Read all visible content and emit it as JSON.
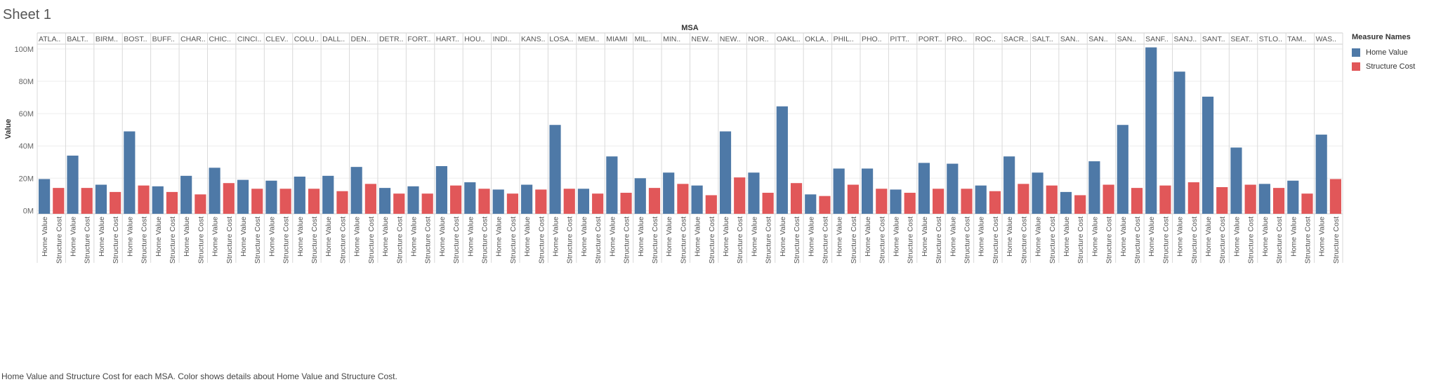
{
  "sheet": {
    "title": "Sheet 1",
    "caption": "Home Value and Structure Cost for each MSA.  Color shows details about Home Value and Structure Cost."
  },
  "legend": {
    "title": "Measure Names",
    "items": [
      {
        "label": "Home Value",
        "color": "#4e79a7"
      },
      {
        "label": "Structure Cost",
        "color": "#e15759"
      }
    ]
  },
  "chart_data": {
    "type": "bar",
    "title": "MSA",
    "xlabel": "",
    "ylabel": "Value",
    "ylim": [
      -2,
      103
    ],
    "yticks": [
      0,
      20,
      40,
      60,
      80,
      100
    ],
    "ytick_labels": [
      "0M",
      "20M",
      "40M",
      "60M",
      "80M",
      "100M"
    ],
    "y_unit": "millions",
    "grid": "horizontal",
    "legend_placement": "right",
    "measures": [
      "Home Value",
      "Structure Cost"
    ],
    "categories": [
      "ATLA..",
      "BALT..",
      "BIRM..",
      "BOST..",
      "BUFF..",
      "CHAR..",
      "CHIC..",
      "CINCI..",
      "CLEV..",
      "COLU..",
      "DALL..",
      "DEN..",
      "DETR..",
      "FORT..",
      "HART..",
      "HOU..",
      "INDI..",
      "KANS..",
      "LOSA..",
      "MEM..",
      "MIAMI",
      "MIL..",
      "MIN..",
      "NEW..",
      "NEW..",
      "NOR..",
      "OAKL..",
      "OKLA..",
      "PHIL..",
      "PHO..",
      "PITT..",
      "PORT..",
      "PRO..",
      "ROC..",
      "SACR..",
      "SALT..",
      "SAN..",
      "SAN..",
      "SAN..",
      "SANF..",
      "SANJ..",
      "SANT..",
      "SEAT..",
      "STLO..",
      "TAM..",
      "WAS.."
    ],
    "series": [
      {
        "name": "Home Value",
        "color": "#4e79a7",
        "values": [
          19.5,
          34,
          16,
          49,
          15,
          21.5,
          26.5,
          19,
          18.5,
          21,
          21.5,
          27,
          14,
          15,
          27.5,
          17.5,
          13,
          16,
          53,
          13.5,
          33.5,
          20,
          23.5,
          15.5,
          49,
          23.5,
          64.5,
          10,
          26,
          26,
          13,
          29.5,
          29,
          15.5,
          33.5,
          23.5,
          11.5,
          30.5,
          53,
          101,
          86,
          70.5,
          39,
          16.5,
          18.5,
          47
        ]
      },
      {
        "name": "Structure Cost",
        "color": "#e15759",
        "values": [
          14,
          14,
          11.5,
          15.5,
          11.5,
          10,
          17,
          13.5,
          13.5,
          13.5,
          12,
          16.5,
          10.5,
          10.5,
          15.5,
          13.5,
          10.5,
          13,
          13.5,
          10.5,
          11,
          14,
          16.5,
          9.5,
          20.5,
          11,
          17,
          9,
          16,
          13.5,
          11,
          13.5,
          13.5,
          12,
          16.5,
          15.5,
          9.5,
          16,
          14,
          15.5,
          17.5,
          14.5,
          16,
          14,
          10.5,
          19.5
        ]
      }
    ]
  }
}
